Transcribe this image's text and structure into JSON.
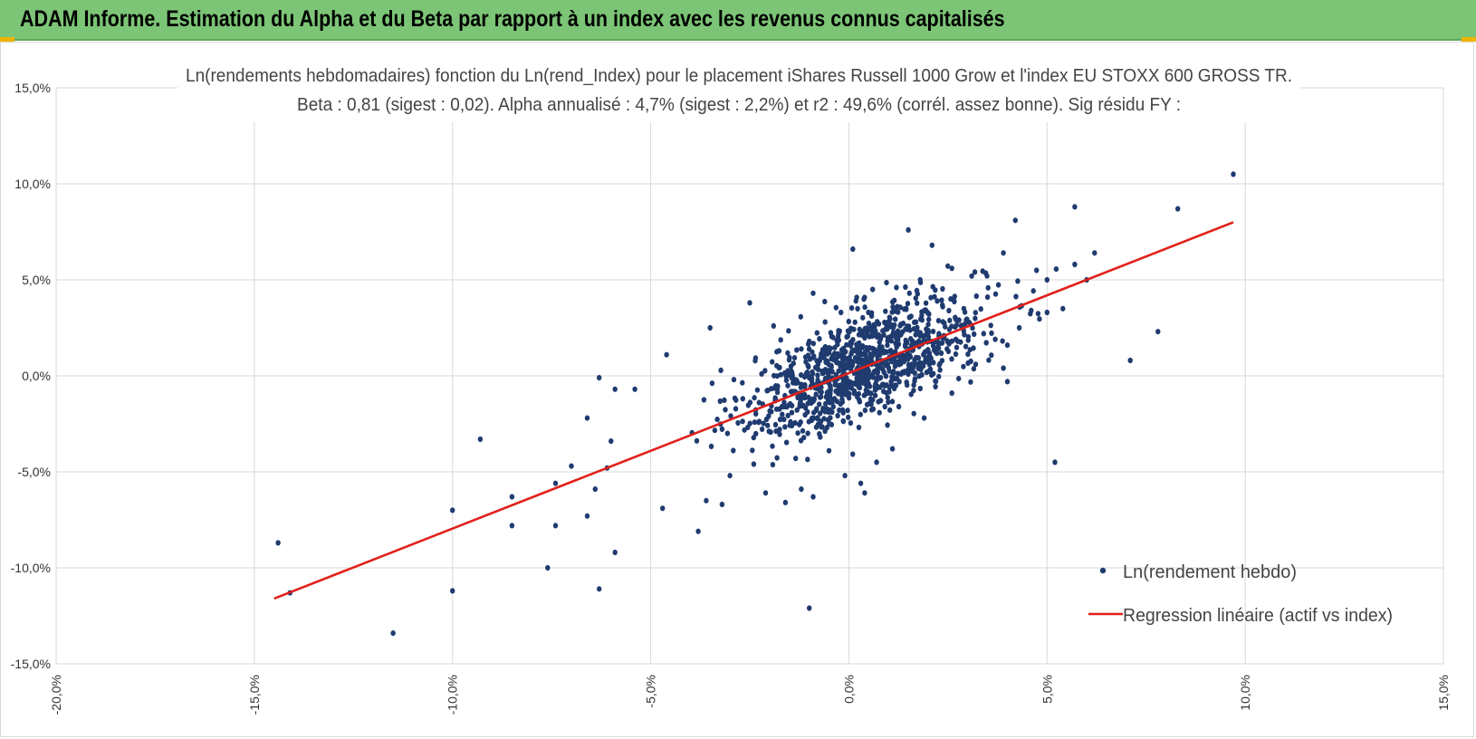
{
  "header": {
    "title": "ADAM Informe. Estimation du Alpha et du Beta par rapport à un index avec les revenus connus capitalisés"
  },
  "colors": {
    "header_bg": "#7cc576",
    "point": "#1f3b6f",
    "regression": "#e0201b",
    "grid": "#d9d9d9"
  },
  "chart_data": {
    "type": "scatter",
    "title_line1": "Ln(rendements hebdomadaires) fonction du Ln(rend_Index) pour le placement iShares Russell 1000 Grow et l'index EU STOXX 600 GROSS TR.",
    "title_line2": "Beta : 0,81 (sigest : 0,02).  Alpha annualisé : 4,7% (sigest : 2,2%) et r2 : 49,6% (corrél. assez bonne). Sig résidu FY :",
    "xlabel": "",
    "ylabel": "",
    "xlim": [
      -20,
      15
    ],
    "ylim": [
      -15,
      15
    ],
    "x_ticks": [
      -20,
      -15,
      -10,
      -5,
      0,
      5,
      10,
      15
    ],
    "y_ticks": [
      -15,
      -10,
      -5,
      0,
      5,
      10,
      15
    ],
    "x_tick_labels": [
      "-20,0%",
      "-15,0%",
      "-10,0%",
      "-5,0%",
      "0,0%",
      "5,0%",
      "10,0%",
      "15,0%"
    ],
    "y_tick_labels": [
      "-15,0%",
      "-10,0%",
      "-5,0%",
      "0,0%",
      "5,0%",
      "10,0%",
      "15,0%"
    ],
    "grid": true,
    "legend_position": "bottom-right",
    "series": [
      {
        "name": "Ln(rendement hebdo)",
        "kind": "scatter",
        "color": "#1f3b6f",
        "points": [
          [
            9.7,
            10.5
          ],
          [
            5.7,
            8.8
          ],
          [
            8.3,
            8.7
          ],
          [
            4.2,
            8.1
          ],
          [
            1.5,
            7.6
          ],
          [
            0.1,
            6.6
          ],
          [
            6.2,
            6.4
          ],
          [
            5.7,
            5.8
          ],
          [
            6.0,
            5.0
          ],
          [
            5.0,
            5.0
          ],
          [
            7.8,
            2.3
          ],
          [
            7.1,
            0.8
          ],
          [
            5.2,
            -4.5
          ],
          [
            5.0,
            3.3
          ],
          [
            3.9,
            6.4
          ],
          [
            2.1,
            6.8
          ],
          [
            -0.9,
            4.3
          ],
          [
            -2.5,
            3.8
          ],
          [
            -3.5,
            2.5
          ],
          [
            -4.6,
            1.1
          ],
          [
            -6.3,
            -0.1
          ],
          [
            -5.9,
            -0.7
          ],
          [
            -5.4,
            -0.7
          ],
          [
            -6.6,
            -2.2
          ],
          [
            -6.0,
            -3.4
          ],
          [
            -9.3,
            -3.3
          ],
          [
            -7.0,
            -4.7
          ],
          [
            -6.1,
            -4.8
          ],
          [
            -6.4,
            -5.9
          ],
          [
            -7.4,
            -5.6
          ],
          [
            -8.5,
            -6.3
          ],
          [
            -10.0,
            -7.0
          ],
          [
            -6.6,
            -7.3
          ],
          [
            -3.8,
            -8.1
          ],
          [
            -8.5,
            -7.8
          ],
          [
            -7.4,
            -7.8
          ],
          [
            -5.9,
            -9.2
          ],
          [
            -7.6,
            -10.0
          ],
          [
            -6.3,
            -11.1
          ],
          [
            -10.0,
            -11.2
          ],
          [
            -14.1,
            -11.3
          ],
          [
            -14.4,
            -8.7
          ],
          [
            -11.5,
            -13.4
          ],
          [
            -1.0,
            -12.1
          ],
          [
            -4.7,
            -6.9
          ],
          [
            -3.2,
            -6.7
          ],
          [
            -3.6,
            -6.5
          ],
          [
            -1.6,
            -6.6
          ],
          [
            -2.1,
            -6.1
          ],
          [
            -0.9,
            -6.3
          ],
          [
            0.4,
            -6.1
          ],
          [
            0.3,
            -5.6
          ],
          [
            -1.2,
            -5.9
          ],
          [
            -3.0,
            -5.2
          ],
          [
            -2.4,
            -4.6
          ],
          [
            -2.9,
            -0.2
          ],
          [
            -2.2,
            0.1
          ],
          [
            -1.9,
            2.6
          ],
          [
            -1.2,
            1.4
          ],
          [
            -0.6,
            2.8
          ],
          [
            -0.2,
            3.3
          ],
          [
            1.2,
            4.6
          ],
          [
            1.8,
            5.0
          ],
          [
            2.6,
            5.6
          ],
          [
            3.1,
            5.2
          ],
          [
            4.3,
            2.5
          ],
          [
            4.6,
            3.4
          ],
          [
            5.4,
            3.5
          ],
          [
            4.0,
            1.6
          ],
          [
            3.9,
            0.4
          ],
          [
            4.0,
            -0.3
          ],
          [
            3.4,
            2.2
          ],
          [
            2.7,
            1.9
          ],
          [
            0.7,
            -4.5
          ],
          [
            1.1,
            -3.8
          ],
          [
            -0.1,
            -5.2
          ],
          [
            -0.5,
            -3.9
          ],
          [
            1.9,
            -2.2
          ],
          [
            2.6,
            -0.9
          ],
          [
            2.3,
            0.3
          ],
          [
            3.2,
            0.6
          ],
          [
            2.9,
            3.5
          ],
          [
            3.5,
            4.1
          ],
          [
            0.6,
            4.5
          ],
          [
            -0.4,
            2.0
          ]
        ],
        "density_cloud": {
          "count": 1050,
          "center": [
            0.4,
            0.6
          ],
          "beta": 0.81,
          "x_sd": 1.5,
          "noise_sd": 1.35
        }
      },
      {
        "name": "Regression linéaire (actif vs index)",
        "kind": "line",
        "color": "#e0201b",
        "points": [
          [
            -14.5,
            -11.6
          ],
          [
            9.7,
            8.0
          ]
        ]
      }
    ]
  }
}
